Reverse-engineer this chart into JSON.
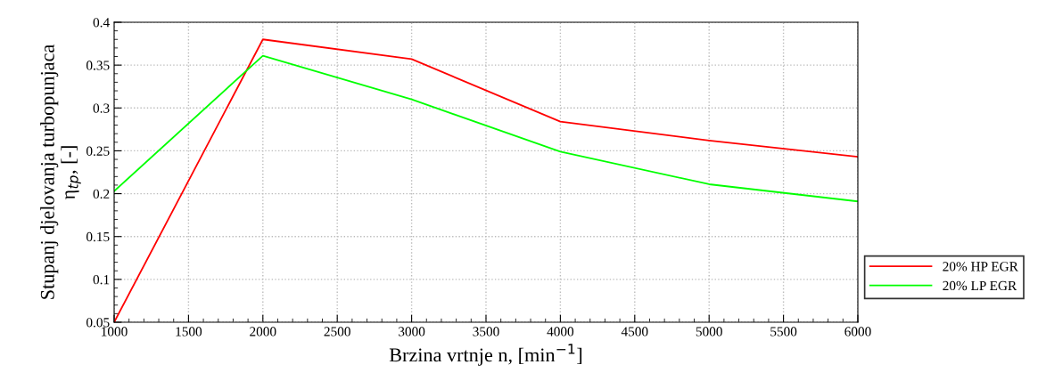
{
  "chart_data": {
    "type": "line",
    "xlabel": "Brzina vrtnje n, [min$^{−1}$]",
    "ylabel": "Stupanj djelovanja turbopunjaca\nη$_{tp}$, [-]",
    "x": [
      1000,
      2000,
      3000,
      4000,
      5000,
      6000
    ],
    "series": [
      {
        "name": "20% HP EGR",
        "color": "#ff0000",
        "values": [
          0.05,
          0.38,
          0.357,
          0.284,
          0.262,
          0.243
        ]
      },
      {
        "name": "20% LP EGR",
        "color": "#00ff00",
        "values": [
          0.203,
          0.361,
          0.31,
          0.249,
          0.211,
          0.191
        ]
      }
    ],
    "xlim": [
      1000,
      6000
    ],
    "xticks": [
      1000,
      1500,
      2000,
      2500,
      3000,
      3500,
      4000,
      4500,
      5000,
      5500,
      6000
    ],
    "ylim": [
      0.05,
      0.4
    ],
    "yticks": [
      0.05,
      0.1,
      0.15,
      0.2,
      0.25,
      0.3,
      0.35,
      0.4
    ],
    "grid": true,
    "legend": "right",
    "marker": "none",
    "line_style": "solid"
  }
}
